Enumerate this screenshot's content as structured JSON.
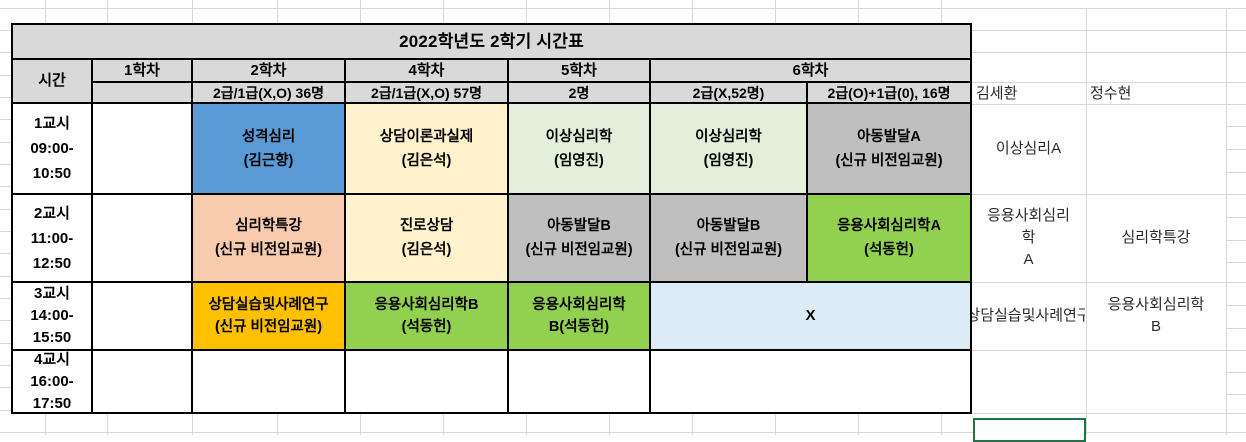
{
  "title": "2022학년도 2학기 시간표",
  "columns": {
    "time_label": "시간",
    "c1": {
      "label": "1학차",
      "sub": ""
    },
    "c2": {
      "label": "2학차",
      "sub": "2급/1급(X,O) 36명"
    },
    "c3": {
      "label": "4학차",
      "sub": "2급/1급(X,O) 57명"
    },
    "c4": {
      "label": "5학차",
      "sub": "2명"
    },
    "c6": {
      "label": "6학차",
      "sub_left": "2급(X,52명)",
      "sub_right": "2급(O)+1급(0), 16명"
    }
  },
  "rows": [
    {
      "period": "1교시\n09:00-\n10:50",
      "cells": {
        "c1": {
          "text": "",
          "color": "white"
        },
        "c2": {
          "text": "성격심리\n(김근향)",
          "color": "blue"
        },
        "c3": {
          "text": "상담이론과실제\n(김은석)",
          "color": "cream"
        },
        "c4": {
          "text": "이상심리학\n(임영진)",
          "color": "light_green"
        },
        "c5": {
          "text": "이상심리학\n(임영진)",
          "color": "light_green"
        },
        "c6": {
          "text": "아동발달A\n(신규 비전임교원)",
          "color": "gray"
        }
      }
    },
    {
      "period": "2교시\n11:00-\n12:50",
      "cells": {
        "c1": {
          "text": "",
          "color": "white"
        },
        "c2": {
          "text": "심리학특강\n(신규 비전임교원)",
          "color": "salmon"
        },
        "c3": {
          "text": "진로상담\n(김은석)",
          "color": "cream"
        },
        "c4": {
          "text": "아동발달B\n(신규 비전임교원)",
          "color": "gray"
        },
        "c5": {
          "text": "아동발달B\n(신규 비전임교원)",
          "color": "gray"
        },
        "c6": {
          "text": "응용사회심리학A\n(석동헌)",
          "color": "green"
        }
      }
    },
    {
      "period": "3교시\n14:00-\n15:50",
      "cells": {
        "c1": {
          "text": "",
          "color": "white"
        },
        "c2": {
          "text": "상담실습및사례연구\n(신규 비전임교원)",
          "color": "orange"
        },
        "c3": {
          "text": "응용사회심리학B\n(석동헌)",
          "color": "green"
        },
        "c4": {
          "text": "응용사회심리학\nB(석동헌)",
          "color": "green"
        },
        "c56": {
          "text": "X",
          "color": "light_blue"
        }
      }
    },
    {
      "period": "4교시\n16:00-\n17:50",
      "cells": {
        "c1": {
          "text": "",
          "color": "white"
        },
        "c2": {
          "text": "",
          "color": "white"
        },
        "c3": {
          "text": "",
          "color": "white"
        },
        "c4": {
          "text": "",
          "color": "white"
        },
        "c56": {
          "text": "",
          "color": "white"
        }
      }
    }
  ],
  "side": {
    "names": {
      "name1": "김세환",
      "name2": "정수현"
    },
    "notes": {
      "r1c1": "이상심리A",
      "r2c1": "응용사회심리\n학\nA",
      "r2c2": "심리학특강",
      "r3c1": "상담실습및사례연구",
      "r3c2": "응용사회심리학\nB"
    }
  },
  "colors": {
    "white": "#ffffff",
    "header_fill": "#d9d9d9",
    "blue": "#5b9bd5",
    "cream": "#fff2cc",
    "light_green": "#e2efda",
    "gray": "#bfbfbf",
    "salmon": "#f8cbad",
    "orange": "#ffc000",
    "green": "#92d050",
    "light_blue": "#ddebf7",
    "selection_green": "#217346",
    "table_border": "#000000"
  }
}
